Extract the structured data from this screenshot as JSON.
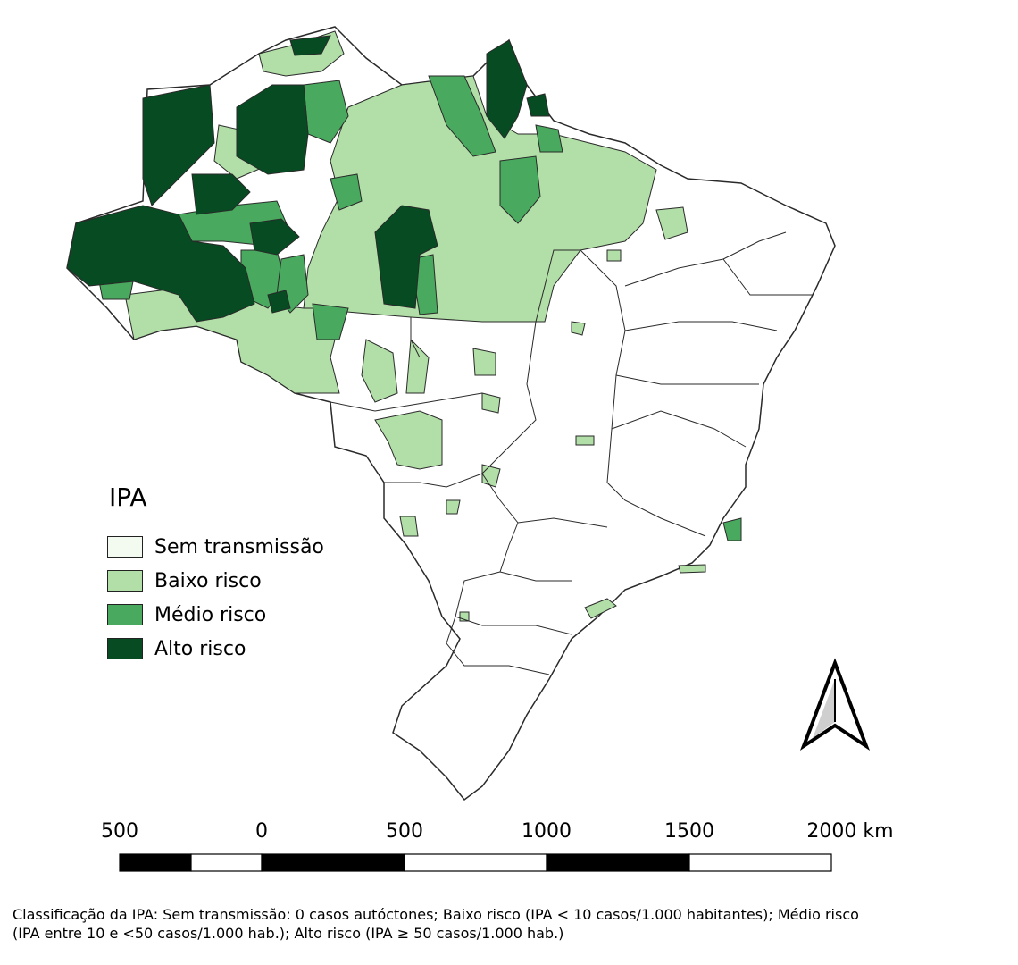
{
  "legend": {
    "title": "IPA",
    "items": [
      {
        "label": "Sem transmissão",
        "color": "#f3fbf1"
      },
      {
        "label": "Baixo risco",
        "color": "#b2dfa8"
      },
      {
        "label": "Médio risco",
        "color": "#49a95e"
      },
      {
        "label": "Alto risco",
        "color": "#064b22"
      }
    ]
  },
  "scale_bar": {
    "labels": [
      "500",
      "0",
      "500",
      "1000",
      "1500",
      "2000 km"
    ]
  },
  "north_arrow": {
    "icon": "north-arrow-icon"
  },
  "caption": {
    "line1": "Classificação da IPA: Sem transmissão: 0 casos autóctones; Baixo risco (IPA < 10 casos/1.000 habitantes); Médio risco",
    "line2": "(IPA entre 10 e <50 casos/1.000 hab.); Alto risco (IPA ≥ 50 casos/1.000 hab.)"
  }
}
